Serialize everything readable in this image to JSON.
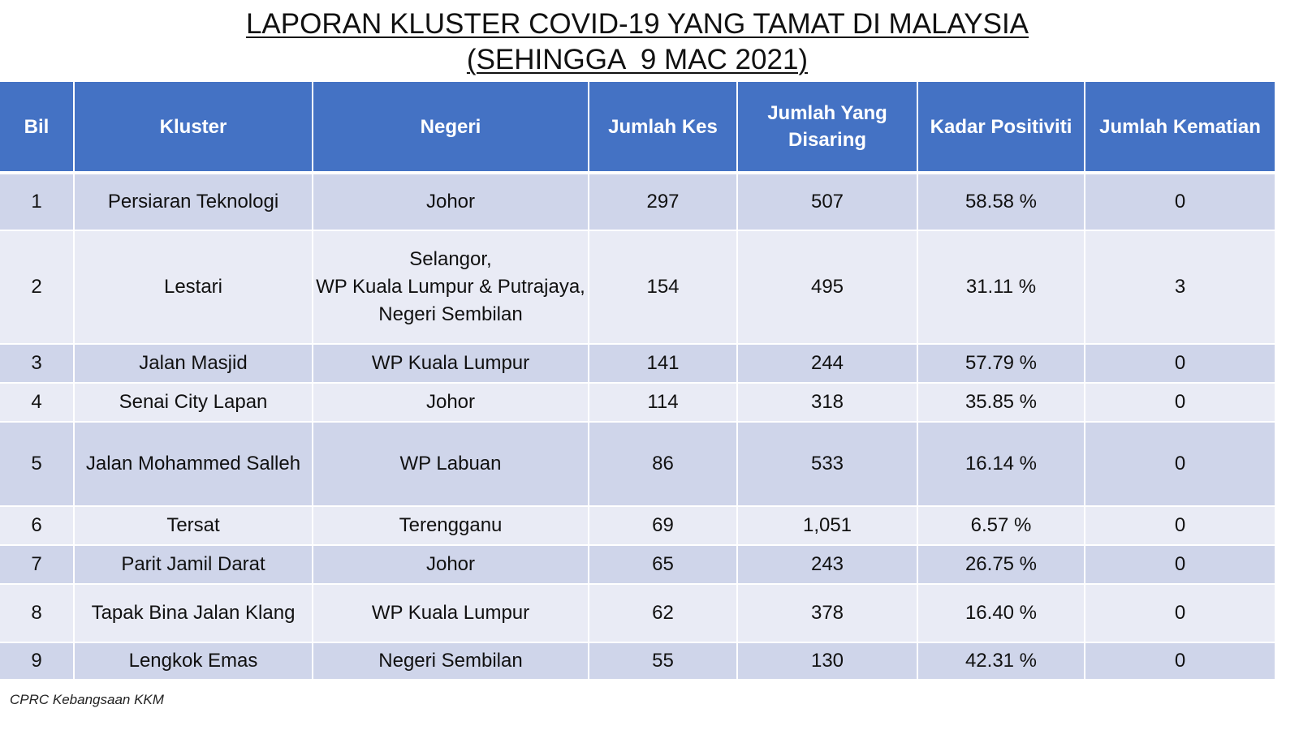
{
  "title": {
    "line1": "LAPORAN KLUSTER COVID-19 YANG TAMAT DI MALAYSIA",
    "line2": "(SEHINGGA  9 MAC 2021)"
  },
  "table": {
    "headers": {
      "bil": "Bil",
      "kluster": "Kluster",
      "negeri": "Negeri",
      "jumlah_kes": "Jumlah Kes",
      "jumlah_disaring": "Jumlah Yang Disaring",
      "kadar_positiviti": "Kadar Positiviti",
      "jumlah_kematian": "Jumlah Kematian"
    },
    "rows": [
      {
        "bil": "1",
        "kluster": "Persiaran Teknologi",
        "negeri": "Johor",
        "kes": "297",
        "disaring": "507",
        "positiviti": "58.58 %",
        "kematian": "0"
      },
      {
        "bil": "2",
        "kluster": "Lestari",
        "negeri": "Selangor,\nWP Kuala Lumpur & Putrajaya,\nNegeri Sembilan",
        "kes": "154",
        "disaring": "495",
        "positiviti": "31.11 %",
        "kematian": "3"
      },
      {
        "bil": "3",
        "kluster": "Jalan Masjid",
        "negeri": "WP Kuala Lumpur",
        "kes": "141",
        "disaring": "244",
        "positiviti": "57.79 %",
        "kematian": "0"
      },
      {
        "bil": "4",
        "kluster": "Senai City Lapan",
        "negeri": "Johor",
        "kes": "114",
        "disaring": "318",
        "positiviti": "35.85 %",
        "kematian": "0"
      },
      {
        "bil": "5",
        "kluster": "Jalan Mohammed Salleh",
        "negeri": "WP Labuan",
        "kes": "86",
        "disaring": "533",
        "positiviti": "16.14 %",
        "kematian": "0"
      },
      {
        "bil": "6",
        "kluster": "Tersat",
        "negeri": "Terengganu",
        "kes": "69",
        "disaring": "1,051",
        "positiviti": "6.57 %",
        "kematian": "0"
      },
      {
        "bil": "7",
        "kluster": "Parit Jamil Darat",
        "negeri": "Johor",
        "kes": "65",
        "disaring": "243",
        "positiviti": "26.75 %",
        "kematian": "0"
      },
      {
        "bil": "8",
        "kluster": "Tapak Bina Jalan Klang",
        "negeri": "WP Kuala Lumpur",
        "kes": "62",
        "disaring": "378",
        "positiviti": "16.40 %",
        "kematian": "0"
      },
      {
        "bil": "9",
        "kluster": "Lengkok Emas",
        "negeri": "Negeri Sembilan",
        "kes": "55",
        "disaring": "130",
        "positiviti": "42.31 %",
        "kematian": "0"
      }
    ]
  },
  "source": "CPRC Kebangsaan KKM",
  "colors": {
    "header_bg": "#4472c4",
    "row_dark": "#cfd5ea",
    "row_light": "#e9ebf5"
  }
}
